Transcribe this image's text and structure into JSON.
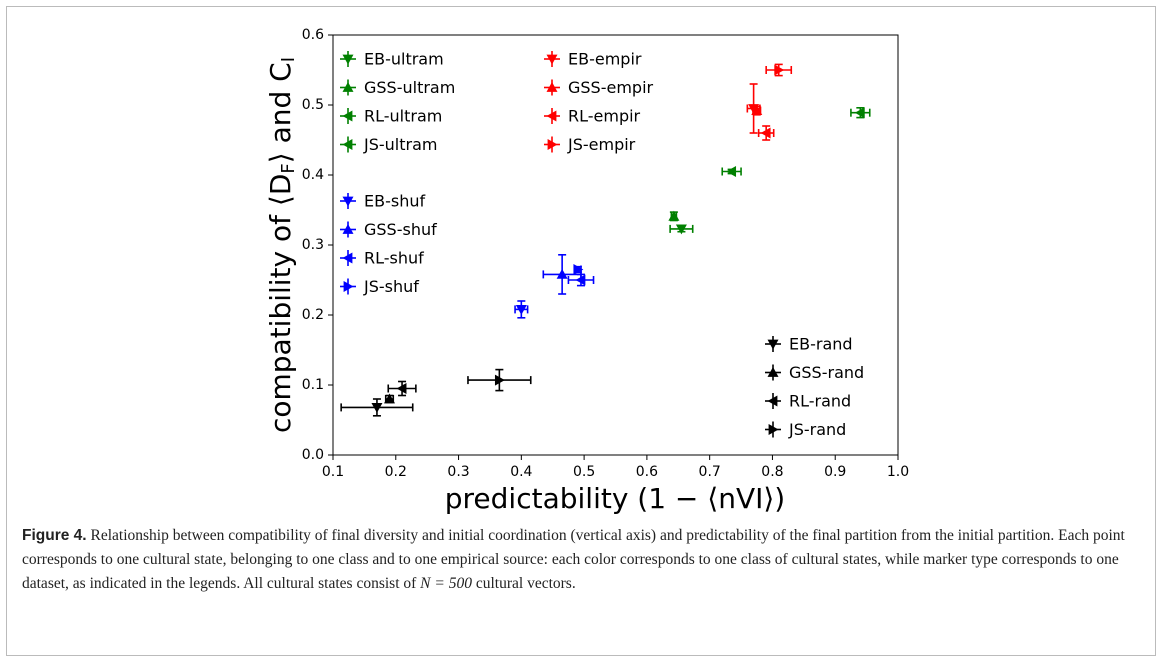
{
  "chart_data": {
    "type": "scatter",
    "xlabel": "predictability (1 − ⟨nVI⟩)",
    "ylabel": [
      "compatibility of ⟨D",
      "F",
      "⟩ and C",
      "I"
    ],
    "xlim": [
      0.1,
      1.0
    ],
    "ylim": [
      0.0,
      0.6
    ],
    "xticks": [
      0.1,
      0.2,
      0.3,
      0.4,
      0.5,
      0.6,
      0.7,
      0.8,
      0.9,
      {
        "value": 1,
        "label": "1.0"
      }
    ],
    "yticks": [
      {
        "value": 0,
        "label": "0.0"
      },
      0.1,
      0.2,
      0.3,
      0.4,
      0.5,
      0.6
    ],
    "series": [
      {
        "name": "EB-ultram",
        "color": "#008000",
        "marker": "down",
        "x": [
          0.655
        ],
        "values": [
          0.323
        ],
        "xerr": [
          0.018
        ],
        "yerr": [
          0.004
        ]
      },
      {
        "name": "GSS-ultram",
        "color": "#008000",
        "marker": "up",
        "x": [
          0.643
        ],
        "values": [
          0.341
        ],
        "xerr": [
          0.004
        ],
        "yerr": [
          0.006
        ]
      },
      {
        "name": "RL-ultram",
        "color": "#008000",
        "marker": "left",
        "x": [
          0.94
        ],
        "values": [
          0.489
        ],
        "xerr": [
          0.015
        ],
        "yerr": [
          0.007
        ]
      },
      {
        "name": "JS-ultram",
        "color": "#008000",
        "marker": "left",
        "x": [
          0.735
        ],
        "values": [
          0.405
        ],
        "xerr": [
          0.015
        ],
        "yerr": [
          0.003
        ]
      },
      {
        "name": "EB-empir",
        "color": "#ff0000",
        "marker": "down",
        "x": [
          0.77
        ],
        "values": [
          0.495
        ],
        "xerr": [
          0.01
        ],
        "yerr": [
          0.035
        ]
      },
      {
        "name": "GSS-empir",
        "color": "#ff0000",
        "marker": "up",
        "x": [
          0.775
        ],
        "values": [
          0.492
        ],
        "xerr": [
          0.006
        ],
        "yerr": [
          0.006
        ]
      },
      {
        "name": "RL-empir",
        "color": "#ff0000",
        "marker": "left",
        "x": [
          0.79
        ],
        "values": [
          0.46
        ],
        "xerr": [
          0.012
        ],
        "yerr": [
          0.01
        ]
      },
      {
        "name": "JS-empir",
        "color": "#ff0000",
        "marker": "right",
        "x": [
          0.81
        ],
        "values": [
          0.55
        ],
        "xerr": [
          0.02
        ],
        "yerr": [
          0.008
        ]
      },
      {
        "name": "EB-shuf",
        "color": "#0000ff",
        "marker": "down",
        "x": [
          0.4
        ],
        "values": [
          0.208
        ],
        "xerr": [
          0.01
        ],
        "yerr": [
          0.012
        ]
      },
      {
        "name": "GSS-shuf",
        "color": "#0000ff",
        "marker": "up",
        "x": [
          0.465
        ],
        "values": [
          0.258
        ],
        "xerr": [
          0.03
        ],
        "yerr": [
          0.028
        ]
      },
      {
        "name": "RL-shuf",
        "color": "#0000ff",
        "marker": "left",
        "x": [
          0.495
        ],
        "values": [
          0.25
        ],
        "xerr": [
          0.02
        ],
        "yerr": [
          0.008
        ]
      },
      {
        "name": "JS-shuf",
        "color": "#0000ff",
        "marker": "right",
        "x": [
          0.49
        ],
        "values": [
          0.265
        ],
        "xerr": [
          0.005
        ],
        "yerr": [
          0.004
        ]
      },
      {
        "name": "EB-rand",
        "color": "#000000",
        "marker": "down",
        "x": [
          0.17
        ],
        "values": [
          0.068
        ],
        "xerr": [
          0.057
        ],
        "yerr": [
          0.012
        ]
      },
      {
        "name": "GSS-rand",
        "color": "#000000",
        "marker": "up",
        "x": [
          0.19
        ],
        "values": [
          0.08
        ],
        "xerr": [
          0.006
        ],
        "yerr": [
          0.005
        ]
      },
      {
        "name": "RL-rand",
        "color": "#000000",
        "marker": "left",
        "x": [
          0.21
        ],
        "values": [
          0.095
        ],
        "xerr": [
          0.022
        ],
        "yerr": [
          0.01
        ]
      },
      {
        "name": "JS-rand",
        "color": "#000000",
        "marker": "right",
        "x": [
          0.365
        ],
        "values": [
          0.107
        ],
        "xerr": [
          0.05
        ],
        "yerr": [
          0.015
        ]
      }
    ]
  },
  "caption": {
    "label": "Figure 4.",
    "text": "Relationship between compatibility of final diversity and initial coordination (vertical axis) and predictability of the final partition from the initial partition. Each point corresponds to one cultural state, belonging to one class and to one empirical source: each color corresponds to one class of cultural states, while marker type corresponds to one dataset, as indicated in the legends. All cultural states consist of ",
    "math": "N = 500",
    "end": " cultural vectors."
  }
}
